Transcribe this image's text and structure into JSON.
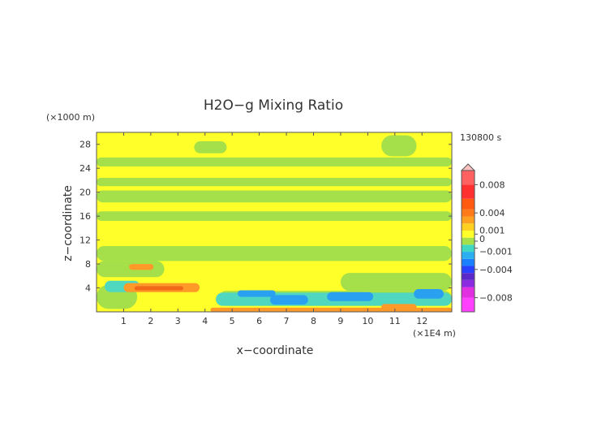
{
  "chart_data": {
    "type": "heatmap",
    "title": "H2O−g Mixing Ratio",
    "xlabel": "x−coordinate",
    "ylabel": "z−coordinate",
    "x_unit": "(×1E4 m)",
    "y_unit": "(×1000 m)",
    "time_label": "130800 s",
    "xlim": [
      0,
      13.1
    ],
    "ylim": [
      0,
      30
    ],
    "x_ticks": [
      1,
      2,
      3,
      4,
      5,
      6,
      7,
      8,
      9,
      10,
      11,
      12
    ],
    "y_ticks": [
      4,
      8,
      12,
      16,
      20,
      24,
      28
    ],
    "grid": false,
    "legend": "right",
    "colorbar": {
      "ticks": [
        "0.008",
        "0.004",
        "0.001",
        "0",
        "−0.001",
        "−0.004",
        "−0.008"
      ],
      "tick_values": [
        0.008,
        0.004,
        0.001,
        0,
        -0.001,
        -0.004,
        -0.008
      ],
      "range": [
        -0.01,
        0.01
      ]
    },
    "regions": [
      {
        "level": -0.0005,
        "color": "#a5e04a",
        "x": [
          0,
          13.1
        ],
        "y": [
          8.5,
          11
        ]
      },
      {
        "level": -0.0005,
        "color": "#a5e04a",
        "x": [
          0,
          13.1
        ],
        "y": [
          15.2,
          16.8
        ]
      },
      {
        "level": -0.0005,
        "color": "#a5e04a",
        "x": [
          0,
          13.1
        ],
        "y": [
          18.3,
          20.3
        ]
      },
      {
        "level": -0.0005,
        "color": "#a5e04a",
        "x": [
          0,
          13.1
        ],
        "y": [
          21,
          22.4
        ]
      },
      {
        "level": -0.0005,
        "color": "#a5e04a",
        "x": [
          0,
          13.1
        ],
        "y": [
          24.3,
          25.8
        ]
      },
      {
        "level": -0.0005,
        "color": "#a5e04a",
        "x": [
          3.6,
          4.8
        ],
        "y": [
          26.5,
          28.5
        ]
      },
      {
        "level": -0.0005,
        "color": "#a5e04a",
        "x": [
          10.5,
          11.8
        ],
        "y": [
          26,
          29.5
        ]
      },
      {
        "level": -0.0005,
        "color": "#a5e04a",
        "x": [
          0,
          2.5
        ],
        "y": [
          5.8,
          8.5
        ]
      },
      {
        "level": -0.0005,
        "color": "#a5e04a",
        "x": [
          0,
          1.5
        ],
        "y": [
          0.5,
          4.5
        ]
      },
      {
        "level": -0.0005,
        "color": "#a5e04a",
        "x": [
          4.5,
          13.1
        ],
        "y": [
          1,
          3.5
        ]
      },
      {
        "level": -0.0005,
        "color": "#a5e04a",
        "x": [
          9,
          13.1
        ],
        "y": [
          3.5,
          6.5
        ]
      },
      {
        "level": -0.002,
        "color": "#4fd7c0",
        "x": [
          0.3,
          1.6
        ],
        "y": [
          3.3,
          5.2
        ]
      },
      {
        "level": -0.002,
        "color": "#4fd7c0",
        "x": [
          4.4,
          13.1
        ],
        "y": [
          1,
          3.2
        ]
      },
      {
        "level": -0.003,
        "color": "#2aa0f0",
        "x": [
          6.4,
          7.8
        ],
        "y": [
          1.2,
          2.8
        ]
      },
      {
        "level": -0.003,
        "color": "#2aa0f0",
        "x": [
          8.5,
          10.2
        ],
        "y": [
          1.8,
          3.3
        ]
      },
      {
        "level": -0.003,
        "color": "#2aa0f0",
        "x": [
          11.7,
          12.8
        ],
        "y": [
          2.2,
          3.8
        ]
      },
      {
        "level": -0.003,
        "color": "#2aa0f0",
        "x": [
          5.2,
          6.6
        ],
        "y": [
          2.5,
          3.6
        ]
      },
      {
        "level": 0.002,
        "color": "#ff9a28",
        "x": [
          1,
          3.8
        ],
        "y": [
          3.3,
          4.8
        ]
      },
      {
        "level": 0.002,
        "color": "#ff9a28",
        "x": [
          1.2,
          2.1
        ],
        "y": [
          7,
          8
        ]
      },
      {
        "level": 0.002,
        "color": "#ff9a28",
        "x": [
          4.2,
          13.1
        ],
        "y": [
          0,
          0.7
        ]
      },
      {
        "level": 0.002,
        "color": "#ff9a28",
        "x": [
          10.5,
          11.8
        ],
        "y": [
          0.3,
          1.3
        ]
      },
      {
        "level": 0.0035,
        "color": "#f06818",
        "x": [
          1.4,
          3.2
        ],
        "y": [
          3.6,
          4.3
        ]
      }
    ]
  }
}
